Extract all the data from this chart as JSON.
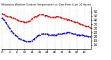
{
  "title": "Milwaukee Weather Outdoor Temperature (vs) Dew Point (Last 24 Hours)",
  "temp_color": "#dd0000",
  "dew_color": "#0000cc",
  "background_color": "#ffffff",
  "grid_color": "#999999",
  "ylim": [
    5,
    55
  ],
  "ytick_values": [
    10,
    15,
    20,
    25,
    30,
    35,
    40,
    45,
    50
  ],
  "n_points": 48,
  "temp_values": [
    47,
    46,
    45,
    44,
    44,
    43,
    42,
    41,
    40,
    39,
    38,
    38,
    37,
    37,
    38,
    39,
    41,
    43,
    44,
    45,
    46,
    46,
    46,
    45,
    45,
    44,
    43,
    43,
    43,
    44,
    44,
    43,
    42,
    41,
    41,
    40,
    40,
    39,
    38,
    37,
    37,
    36,
    35,
    34,
    33,
    32,
    32,
    31
  ],
  "dew_values": [
    42,
    40,
    37,
    33,
    30,
    27,
    24,
    22,
    20,
    18,
    17,
    16,
    15,
    14,
    14,
    14,
    15,
    17,
    19,
    21,
    22,
    23,
    23,
    23,
    23,
    22,
    22,
    22,
    22,
    22,
    23,
    23,
    23,
    24,
    24,
    25,
    25,
    24,
    23,
    23,
    22,
    22,
    22,
    22,
    21,
    21,
    20,
    20
  ],
  "x_tick_interval": 4,
  "line_width": 0.9,
  "marker_size": 1.2,
  "title_fontsize": 2.5,
  "tick_fontsize": 3.2,
  "ytick_fontsize": 3.5
}
